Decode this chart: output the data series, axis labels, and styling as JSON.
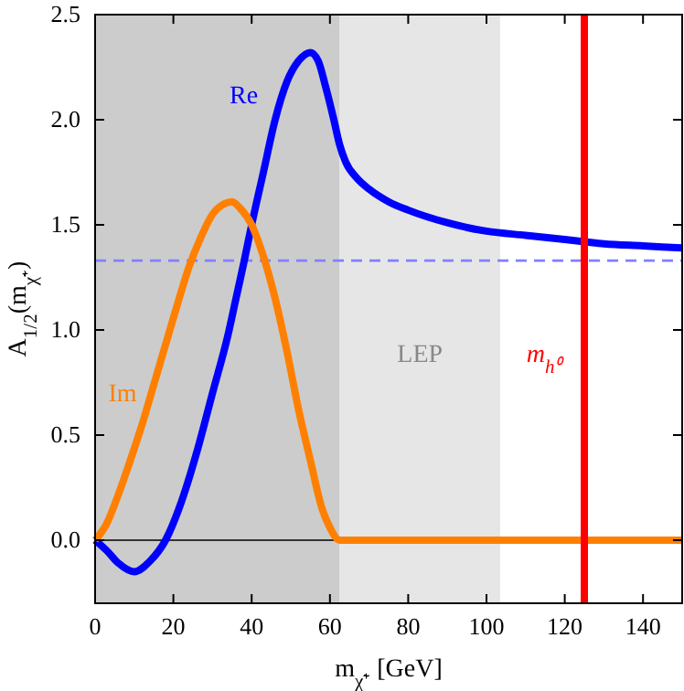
{
  "chart_data": {
    "type": "line",
    "xlabel": "m$_{χ̃⁺}$ [GeV]",
    "ylabel": "A$_{1/2}$(m$_{χ̃⁺}$)",
    "xlim": [
      0,
      150
    ],
    "xticks": [
      0,
      20,
      40,
      60,
      80,
      100,
      120,
      140
    ],
    "ylim": [
      -0.3,
      2.5
    ],
    "yticks": [
      {
        "value": 0,
        "label": "0.0"
      },
      0.5,
      {
        "value": 1,
        "label": "1.0"
      },
      1.5,
      {
        "value": 2,
        "label": "2.0"
      },
      2.5
    ],
    "line_style": "solid",
    "marker": "none",
    "series": [
      {
        "name": "Re",
        "color": "#0000ff",
        "x": [
          0,
          3,
          6,
          10,
          14,
          18,
          22,
          26,
          30,
          34,
          36,
          38,
          40,
          43,
          46,
          49,
          52,
          55,
          57,
          59,
          61,
          62.5,
          64,
          67,
          70,
          75,
          80,
          90,
          100,
          110,
          120,
          125,
          130,
          140,
          150
        ],
        "values": [
          0,
          -0.05,
          -0.11,
          -0.15,
          -0.1,
          0,
          0.18,
          0.42,
          0.7,
          0.98,
          1.15,
          1.32,
          1.5,
          1.75,
          2.0,
          2.18,
          2.28,
          2.32,
          2.28,
          2.15,
          2.0,
          1.88,
          1.8,
          1.72,
          1.67,
          1.61,
          1.57,
          1.51,
          1.47,
          1.45,
          1.43,
          1.42,
          1.41,
          1.4,
          1.39
        ]
      },
      {
        "name": "Im",
        "color": "#ff8000",
        "x": [
          0,
          3,
          6,
          9,
          12,
          15,
          18,
          21,
          24,
          27,
          30,
          33,
          35,
          37,
          40,
          43,
          46,
          49,
          52,
          55,
          58,
          60,
          62.5,
          70,
          100,
          150
        ],
        "values": [
          0,
          0.08,
          0.22,
          0.38,
          0.55,
          0.74,
          0.93,
          1.12,
          1.3,
          1.44,
          1.55,
          1.6,
          1.61,
          1.58,
          1.5,
          1.35,
          1.15,
          0.9,
          0.62,
          0.38,
          0.15,
          0.06,
          0,
          0,
          0,
          0
        ]
      }
    ],
    "bands": [
      {
        "axis": "x",
        "from": 0,
        "to": 62.5,
        "color": "#cccccc"
      },
      {
        "axis": "x",
        "from": 62.5,
        "to": 103.5,
        "color": "#e6e6e6",
        "label": "LEP"
      }
    ],
    "ref_lines": [
      {
        "axis": "y",
        "value": 0,
        "color": "#000000",
        "line_style": "solid"
      },
      {
        "axis": "y",
        "value": 1.33,
        "color": "#8080ff",
        "line_style": "dashed"
      },
      {
        "axis": "x",
        "value": 125,
        "color": "#ff0000",
        "line_style": "solid",
        "label": "m$_{h⁰}$"
      }
    ]
  }
}
